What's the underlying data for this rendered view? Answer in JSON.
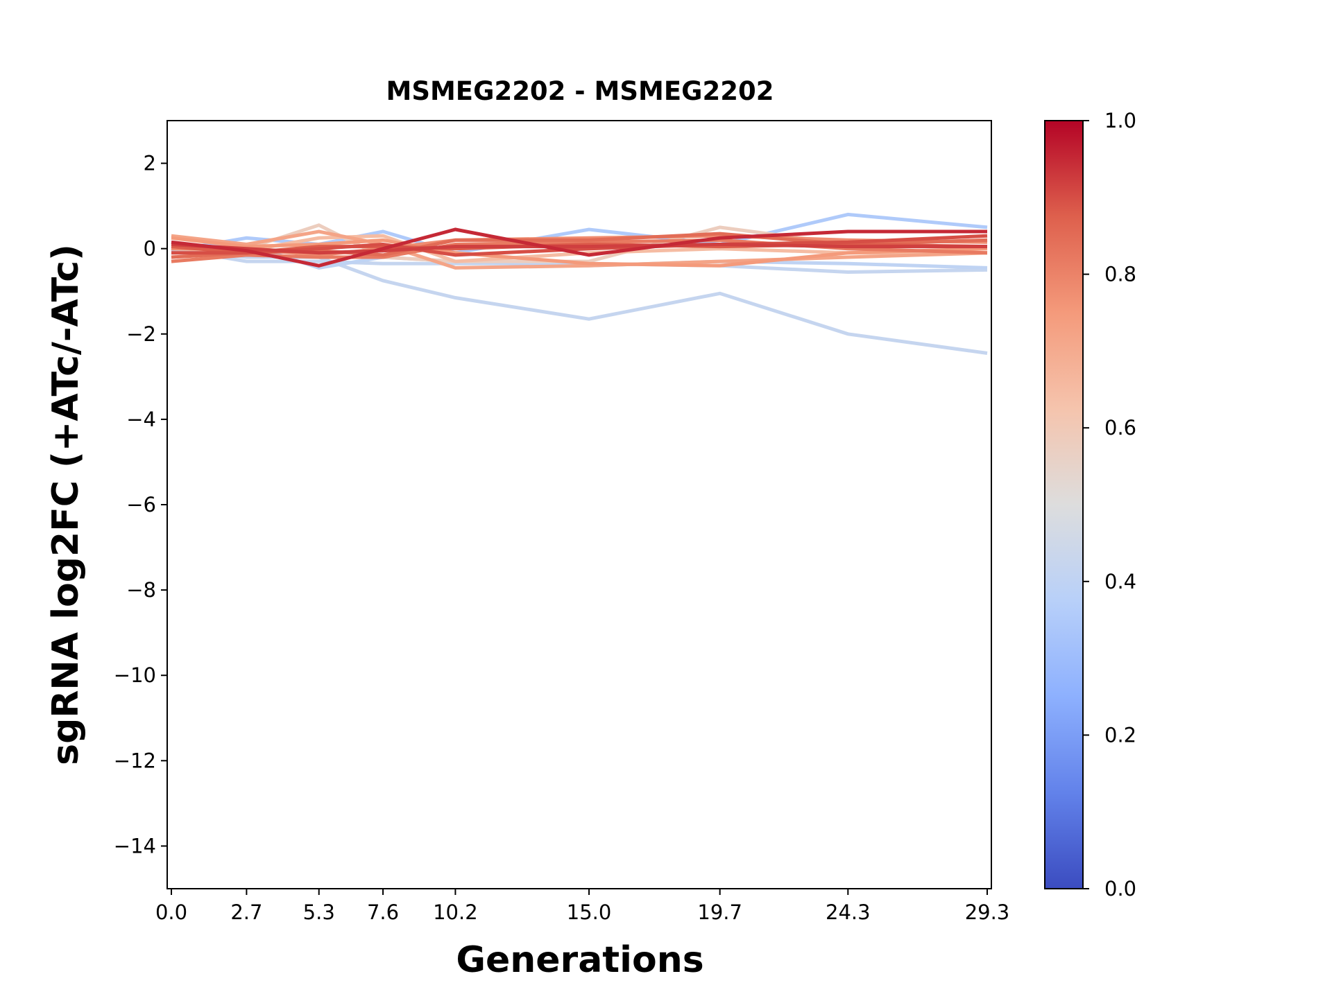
{
  "chart_data": {
    "type": "line",
    "title": "MSMEG2202 - MSMEG2202",
    "xlabel": "Generations",
    "ylabel": "sgRNA log2FC (+ATc/-ATc)",
    "x": [
      0.0,
      2.7,
      5.3,
      7.6,
      10.2,
      15.0,
      19.7,
      24.3,
      29.3
    ],
    "x_tick_labels": [
      "0.0",
      "2.7",
      "5.3",
      "7.6",
      "10.2",
      "15.0",
      "19.7",
      "24.3",
      "29.3"
    ],
    "xlim": [
      -0.15,
      29.45
    ],
    "ylim": [
      -15,
      3
    ],
    "y_ticks": [
      2,
      0,
      -2,
      -4,
      -6,
      -8,
      -10,
      -12,
      -14
    ],
    "y_tick_labels": [
      "2",
      "0",
      "−2",
      "−4",
      "−6",
      "−8",
      "−10",
      "−12",
      "−14"
    ],
    "grid": false,
    "colormap": "coolwarm",
    "colorbar": {
      "range": [
        0.0,
        1.0
      ],
      "ticks": [
        0.0,
        0.2,
        0.4,
        0.6,
        0.8,
        1.0
      ],
      "tick_labels": [
        "0.0",
        "0.2",
        "0.4",
        "0.6",
        "0.8",
        "1.0"
      ],
      "stops": [
        "#3b4cc0",
        "#6282ea",
        "#8db0fe",
        "#b8d0f9",
        "#dddddd",
        "#f5c4ad",
        "#f49a7b",
        "#de604d",
        "#b40426"
      ]
    },
    "series": [
      {
        "color_value": 0.42,
        "values": [
          0.0,
          -0.2,
          -0.2,
          -0.75,
          -1.15,
          -1.65,
          -1.05,
          -2.0,
          -2.45
        ]
      },
      {
        "color_value": 0.35,
        "values": [
          -0.05,
          0.25,
          0.1,
          0.4,
          -0.1,
          0.45,
          0.1,
          0.8,
          0.5
        ]
      },
      {
        "color_value": 0.42,
        "values": [
          0.0,
          -0.3,
          -0.3,
          -0.35,
          -0.35,
          -0.35,
          -0.4,
          -0.55,
          -0.5
        ]
      },
      {
        "color_value": 0.4,
        "values": [
          0.0,
          0.1,
          -0.45,
          -0.2,
          -0.3,
          -0.4,
          -0.3,
          -0.35,
          -0.45
        ]
      },
      {
        "color_value": 0.58,
        "values": [
          0.1,
          0.0,
          0.55,
          -0.2,
          -0.3,
          -0.3,
          0.5,
          0.1,
          0.2
        ]
      },
      {
        "color_value": 0.65,
        "values": [
          0.0,
          -0.05,
          0.25,
          0.3,
          -0.3,
          -0.1,
          0.0,
          -0.1,
          -0.1
        ]
      },
      {
        "color_value": 0.72,
        "values": [
          0.3,
          0.1,
          0.4,
          0.1,
          -0.45,
          -0.4,
          -0.3,
          -0.2,
          -0.1
        ]
      },
      {
        "color_value": 0.75,
        "values": [
          0.25,
          0.05,
          0.1,
          0.2,
          -0.1,
          -0.35,
          -0.4,
          -0.1,
          0.0
        ]
      },
      {
        "color_value": 0.78,
        "values": [
          0.0,
          0.0,
          -0.15,
          0.0,
          0.2,
          0.25,
          0.3,
          0.2,
          0.15
        ]
      },
      {
        "color_value": 0.82,
        "values": [
          -0.3,
          -0.15,
          -0.2,
          -0.2,
          0.1,
          0.15,
          0.2,
          0.0,
          -0.1
        ]
      },
      {
        "color_value": 0.85,
        "values": [
          -0.2,
          -0.1,
          -0.05,
          -0.15,
          0.2,
          0.2,
          0.35,
          0.1,
          0.2
        ]
      },
      {
        "color_value": 0.88,
        "values": [
          0.05,
          -0.1,
          0.05,
          0.05,
          0.0,
          0.1,
          0.05,
          0.1,
          0.05
        ]
      },
      {
        "color_value": 0.9,
        "values": [
          -0.1,
          -0.1,
          0.0,
          0.1,
          -0.15,
          0.0,
          0.1,
          0.15,
          0.3
        ]
      },
      {
        "color_value": 0.92,
        "values": [
          0.1,
          0.0,
          -0.1,
          -0.05,
          0.05,
          0.05,
          0.1,
          0.05,
          0.05
        ]
      },
      {
        "color_value": 0.95,
        "values": [
          0.15,
          -0.05,
          -0.4,
          0.0,
          0.45,
          -0.15,
          0.25,
          0.4,
          0.4
        ]
      }
    ]
  }
}
